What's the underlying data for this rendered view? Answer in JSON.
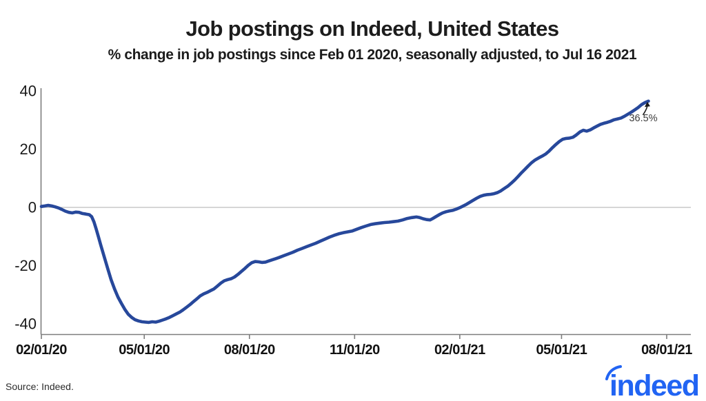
{
  "header": {
    "title": "Job postings on Indeed, United States",
    "subtitle": "% change in job postings since Feb 01 2020, seasonally adjusted, to Jul 16 2021"
  },
  "chart_data": {
    "type": "line",
    "title": "Job postings on Indeed, United States",
    "subtitle": "% change in job postings since Feb 01 2020, seasonally adjusted, to Jul 16 2021",
    "xlabel": "",
    "ylabel": "% change in job postings",
    "x_unit": "days since Feb 01 2020",
    "x_range_days": [
      0,
      547
    ],
    "ylim": [
      -43,
      41
    ],
    "grid": "horizontal zero line only",
    "legend": "none",
    "x_ticks": {
      "labels": [
        "02/01/20",
        "05/01/20",
        "08/01/20",
        "11/01/20",
        "02/01/21",
        "05/01/21",
        "08/01/21"
      ],
      "days": [
        0,
        90,
        182,
        274,
        366,
        455,
        547
      ]
    },
    "y_ticks": {
      "labels": [
        "40",
        "20",
        "0",
        "-20",
        "-40"
      ],
      "values": [
        40,
        20,
        0,
        -20,
        -40
      ]
    },
    "annotation": {
      "text": "36.5%",
      "day": 531,
      "value": 36.5
    },
    "line_color": "#27489b",
    "axis_color": "#7c7c7c",
    "zero_line_color": "#c8c8c8",
    "series": [
      {
        "name": "US job postings, % change since Feb 01 2020",
        "end_label": "36.5%",
        "points": [
          [
            0,
            0.3
          ],
          [
            3,
            0.5
          ],
          [
            6,
            0.7
          ],
          [
            9,
            0.5
          ],
          [
            12,
            0.2
          ],
          [
            15,
            -0.2
          ],
          [
            18,
            -0.7
          ],
          [
            21,
            -1.3
          ],
          [
            24,
            -1.7
          ],
          [
            27,
            -1.9
          ],
          [
            30,
            -1.6
          ],
          [
            33,
            -1.7
          ],
          [
            36,
            -2.1
          ],
          [
            39,
            -2.3
          ],
          [
            42,
            -2.5
          ],
          [
            44,
            -3.2
          ],
          [
            46,
            -5
          ],
          [
            48,
            -7.5
          ],
          [
            50,
            -10.2
          ],
          [
            52,
            -13
          ],
          [
            55,
            -17
          ],
          [
            58,
            -21
          ],
          [
            61,
            -24.8
          ],
          [
            64,
            -28
          ],
          [
            67,
            -30.8
          ],
          [
            70,
            -33
          ],
          [
            73,
            -35
          ],
          [
            76,
            -36.7
          ],
          [
            79,
            -37.8
          ],
          [
            82,
            -38.6
          ],
          [
            85,
            -39
          ],
          [
            88,
            -39.3
          ],
          [
            91,
            -39.4
          ],
          [
            94,
            -39.5
          ],
          [
            97,
            -39.3
          ],
          [
            100,
            -39.4
          ],
          [
            103,
            -39.1
          ],
          [
            106,
            -38.7
          ],
          [
            109,
            -38.3
          ],
          [
            112,
            -37.8
          ],
          [
            115,
            -37.2
          ],
          [
            118,
            -36.6
          ],
          [
            121,
            -36
          ],
          [
            124,
            -35.2
          ],
          [
            127,
            -34.3
          ],
          [
            130,
            -33.4
          ],
          [
            133,
            -32.4
          ],
          [
            136,
            -31.4
          ],
          [
            139,
            -30.4
          ],
          [
            142,
            -29.7
          ],
          [
            145,
            -29.2
          ],
          [
            148,
            -28.6
          ],
          [
            151,
            -28
          ],
          [
            154,
            -27
          ],
          [
            157,
            -26
          ],
          [
            160,
            -25.2
          ],
          [
            163,
            -24.8
          ],
          [
            166,
            -24.5
          ],
          [
            169,
            -23.9
          ],
          [
            172,
            -23
          ],
          [
            175,
            -22
          ],
          [
            178,
            -21
          ],
          [
            181,
            -19.9
          ],
          [
            184,
            -19
          ],
          [
            187,
            -18.6
          ],
          [
            190,
            -18.7
          ],
          [
            193,
            -18.9
          ],
          [
            196,
            -18.8
          ],
          [
            199,
            -18.4
          ],
          [
            202,
            -18
          ],
          [
            205,
            -17.6
          ],
          [
            208,
            -17.2
          ],
          [
            212,
            -16.6
          ],
          [
            216,
            -16
          ],
          [
            220,
            -15.4
          ],
          [
            224,
            -14.7
          ],
          [
            228,
            -14.1
          ],
          [
            232,
            -13.5
          ],
          [
            236,
            -12.9
          ],
          [
            240,
            -12.3
          ],
          [
            244,
            -11.6
          ],
          [
            248,
            -10.9
          ],
          [
            252,
            -10.2
          ],
          [
            256,
            -9.6
          ],
          [
            260,
            -9.1
          ],
          [
            264,
            -8.7
          ],
          [
            268,
            -8.4
          ],
          [
            272,
            -8.1
          ],
          [
            276,
            -7.5
          ],
          [
            280,
            -6.9
          ],
          [
            284,
            -6.4
          ],
          [
            288,
            -5.9
          ],
          [
            292,
            -5.6
          ],
          [
            296,
            -5.4
          ],
          [
            300,
            -5.2
          ],
          [
            304,
            -5.1
          ],
          [
            308,
            -4.9
          ],
          [
            312,
            -4.7
          ],
          [
            316,
            -4.3
          ],
          [
            320,
            -3.8
          ],
          [
            324,
            -3.5
          ],
          [
            328,
            -3.3
          ],
          [
            331,
            -3.5
          ],
          [
            334,
            -3.9
          ],
          [
            337,
            -4.2
          ],
          [
            340,
            -4.3
          ],
          [
            342,
            -3.9
          ],
          [
            345,
            -3.2
          ],
          [
            348,
            -2.5
          ],
          [
            351,
            -1.9
          ],
          [
            354,
            -1.5
          ],
          [
            357,
            -1.2
          ],
          [
            360,
            -1
          ],
          [
            363,
            -0.6
          ],
          [
            366,
            -0.1
          ],
          [
            369,
            0.5
          ],
          [
            372,
            1.1
          ],
          [
            375,
            1.8
          ],
          [
            378,
            2.5
          ],
          [
            381,
            3.2
          ],
          [
            384,
            3.8
          ],
          [
            387,
            4.2
          ],
          [
            390,
            4.4
          ],
          [
            393,
            4.5
          ],
          [
            396,
            4.7
          ],
          [
            399,
            5.1
          ],
          [
            402,
            5.7
          ],
          [
            405,
            6.5
          ],
          [
            408,
            7.3
          ],
          [
            411,
            8.3
          ],
          [
            414,
            9.4
          ],
          [
            417,
            10.6
          ],
          [
            420,
            11.9
          ],
          [
            423,
            13.1
          ],
          [
            426,
            14.3
          ],
          [
            429,
            15.4
          ],
          [
            432,
            16.3
          ],
          [
            435,
            17
          ],
          [
            438,
            17.6
          ],
          [
            441,
            18.3
          ],
          [
            444,
            19.3
          ],
          [
            447,
            20.5
          ],
          [
            450,
            21.6
          ],
          [
            453,
            22.6
          ],
          [
            456,
            23.4
          ],
          [
            459,
            23.7
          ],
          [
            462,
            23.8
          ],
          [
            465,
            24.1
          ],
          [
            468,
            24.9
          ],
          [
            471,
            25.9
          ],
          [
            474,
            26.5
          ],
          [
            477,
            26.2
          ],
          [
            480,
            26.6
          ],
          [
            483,
            27.3
          ],
          [
            486,
            27.9
          ],
          [
            489,
            28.5
          ],
          [
            492,
            28.9
          ],
          [
            495,
            29.2
          ],
          [
            498,
            29.6
          ],
          [
            501,
            30.1
          ],
          [
            504,
            30.4
          ],
          [
            507,
            30.7
          ],
          [
            510,
            31.3
          ],
          [
            513,
            32
          ],
          [
            516,
            32.7
          ],
          [
            519,
            33.5
          ],
          [
            522,
            34.3
          ],
          [
            525,
            35.3
          ],
          [
            528,
            36
          ],
          [
            531,
            36.5
          ]
        ]
      }
    ]
  },
  "footer": {
    "source": "Source: Indeed.",
    "logo_text": "indeed",
    "logo_color": "#2164f3"
  }
}
